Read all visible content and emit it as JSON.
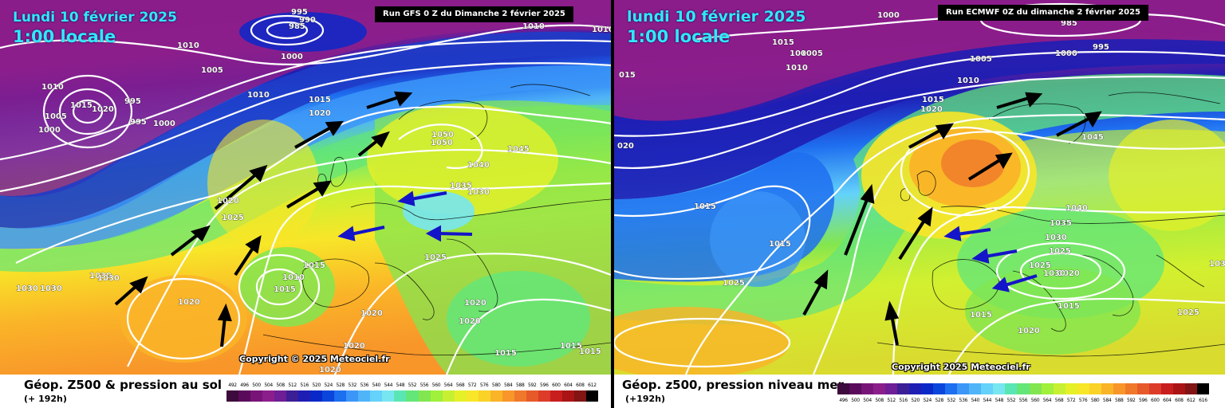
{
  "left": {
    "date": "Lundi 10 février 2025",
    "time": "1:00 locale",
    "run": "Run GFS 0 Z du Dimanche 2 février 2025",
    "copyright": "Copyright © 2025 Meteociel.fr",
    "title": "Géop. Z500 & pression au sol",
    "subtitle": "(+ 192h)",
    "scale_labels": [
      "492",
      "496",
      "500",
      "504",
      "508",
      "512",
      "516",
      "520",
      "524",
      "528",
      "532",
      "536",
      "540",
      "544",
      "548",
      "552",
      "556",
      "560",
      "564",
      "568",
      "572",
      "576",
      "580",
      "584",
      "588",
      "592",
      "596",
      "600",
      "604",
      "608",
      "612"
    ],
    "isobars": [
      "995",
      "990",
      "985",
      "1010",
      "1010",
      "1010",
      "1005",
      "1000",
      "1010",
      "1015",
      "1020",
      "995",
      "995",
      "1000",
      "1005",
      "1000",
      "1010",
      "1015",
      "1020",
      "1050",
      "1050",
      "1045",
      "1040",
      "1035",
      "1030",
      "1020",
      "1025",
      "1030",
      "1030",
      "1030",
      "1030",
      "1020",
      "1015",
      "1010",
      "1015",
      "1025",
      "1020",
      "1020",
      "1020",
      "1020",
      "1020",
      "1015",
      "1015",
      "1015"
    ]
  },
  "right": {
    "date": "lundi 10 février 2025",
    "time": "1:00 locale",
    "run": "Run ECMWF 0Z du dimanche 2 février 2025",
    "copyright": "Copyright 2025 Meteociel.fr",
    "title": "Géop. z500, pression niveau mer",
    "subtitle": "(+192h)",
    "scale_labels": [
      "496",
      "500",
      "504",
      "508",
      "512",
      "516",
      "520",
      "524",
      "528",
      "532",
      "536",
      "540",
      "544",
      "548",
      "552",
      "556",
      "560",
      "564",
      "568",
      "572",
      "576",
      "580",
      "584",
      "588",
      "592",
      "596",
      "600",
      "604",
      "608",
      "612",
      "616"
    ],
    "isobars": [
      "1000",
      "985",
      "995",
      "1015",
      "1005",
      "1000",
      "1010",
      "1005",
      "1000",
      "015",
      "1010",
      "1015",
      "1020",
      "020",
      "1045",
      "1015",
      "1040",
      "1035",
      "1030",
      "1015",
      "1025",
      "1025",
      "1025",
      "1020",
      "1030",
      "1030",
      "1015",
      "1015",
      "1020",
      "1025"
    ]
  },
  "colors": {
    "scale": [
      "#3c0a3c",
      "#5a0a5a",
      "#781478",
      "#8c1e8c",
      "#6e1e96",
      "#3c1e96",
      "#1e1eb4",
      "#0a28c8",
      "#0a46dc",
      "#1e6ef0",
      "#3c96f8",
      "#50b4f8",
      "#64d2fa",
      "#78e6f0",
      "#5ae6b4",
      "#64e678",
      "#82e650",
      "#a0f03c",
      "#c8f032",
      "#e6f028",
      "#f8e628",
      "#fad228",
      "#fab428",
      "#f8962a",
      "#f0782a",
      "#e65a2a",
      "#dc3c28",
      "#c81e1e",
      "#aa1414",
      "#821414",
      "#000000"
    ]
  }
}
